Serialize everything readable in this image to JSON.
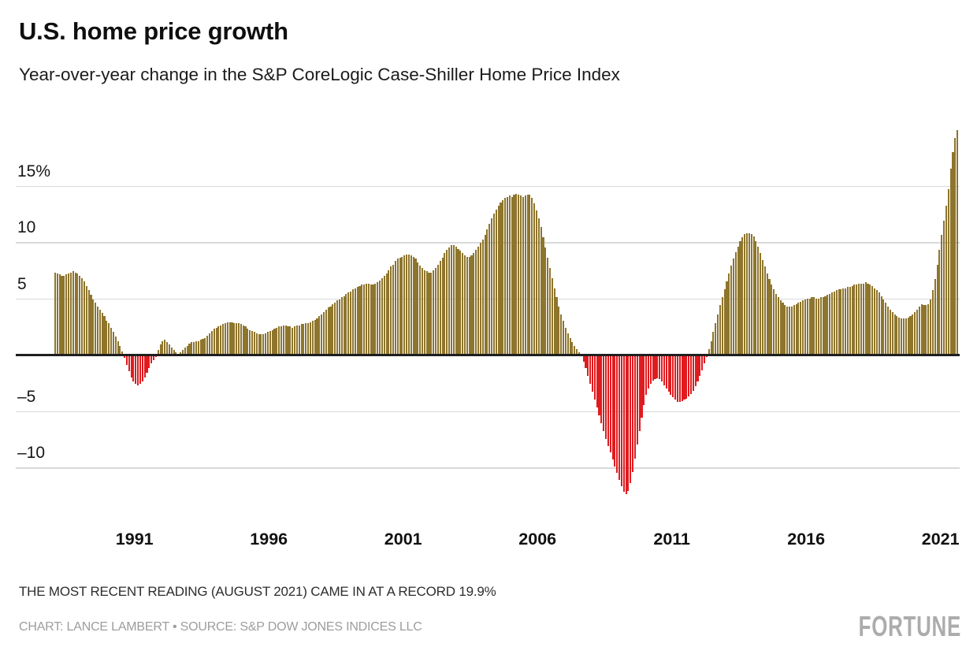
{
  "header": {
    "title": "U.S. home price growth",
    "subtitle": "Year-over-year change in the S&P CoreLogic Case-Shiller Home Price Index"
  },
  "footer": {
    "note": "THE MOST RECENT READING (AUGUST 2021) CAME IN AT A RECORD 19.9%",
    "credit": "CHART: LANCE LAMBERT • SOURCE: S&P DOW JONES INDICES LLC",
    "logo": "FORTUNE"
  },
  "colors": {
    "positive_bar": "#8E752C",
    "negative_bar": "#E01B1F",
    "gridline": "#D9D9D9",
    "zero_line": "#1F1F1F"
  },
  "chart_data": {
    "type": "bar",
    "title": "U.S. home price growth",
    "subtitle": "Year-over-year change in the S&P CoreLogic Case-Shiller Home Price Index",
    "unit": "percent, year-over-year change",
    "frequency": "monthly",
    "x_start": "1988-01",
    "x_end": "2021-08",
    "grid": "horizontal",
    "legend": "none",
    "ylim": [
      -14,
      21
    ],
    "y_ticks": [
      {
        "label": "15%",
        "value": 15
      },
      {
        "label": "10",
        "value": 10
      },
      {
        "label": "5",
        "value": 5
      },
      {
        "label": "–5",
        "value": -5
      },
      {
        "label": "–10",
        "value": -10
      }
    ],
    "x_ticks": [
      {
        "label": "1991",
        "year": 1991
      },
      {
        "label": "1996",
        "year": 1996
      },
      {
        "label": "2001",
        "year": 2001
      },
      {
        "label": "2006",
        "year": 2006
      },
      {
        "label": "2011",
        "year": 2011
      },
      {
        "label": "2016",
        "year": 2016
      },
      {
        "label": "2021",
        "year": 2021
      }
    ],
    "values": [
      7.3,
      7.2,
      7.1,
      7.0,
      7.0,
      7.1,
      7.2,
      7.3,
      7.4,
      7.3,
      7.2,
      7.0,
      6.8,
      6.5,
      6.1,
      5.7,
      5.3,
      4.9,
      4.6,
      4.3,
      4.0,
      3.7,
      3.4,
      3.0,
      2.8,
      2.4,
      2.0,
      1.6,
      1.2,
      0.8,
      0.3,
      -0.3,
      -0.9,
      -1.5,
      -2.0,
      -2.4,
      -2.6,
      -2.7,
      -2.6,
      -2.4,
      -2.0,
      -1.6,
      -1.2,
      -0.8,
      -0.5,
      -0.2,
      0.4,
      0.9,
      1.2,
      1.3,
      1.1,
      0.9,
      0.6,
      0.4,
      0.2,
      0.1,
      0.2,
      0.4,
      0.6,
      0.8,
      1.0,
      1.1,
      1.1,
      1.2,
      1.2,
      1.3,
      1.4,
      1.5,
      1.7,
      1.9,
      2.1,
      2.3,
      2.4,
      2.5,
      2.6,
      2.7,
      2.8,
      2.9,
      2.9,
      2.9,
      2.8,
      2.8,
      2.8,
      2.7,
      2.6,
      2.5,
      2.3,
      2.2,
      2.1,
      2.0,
      1.9,
      1.8,
      1.8,
      1.8,
      1.9,
      2.0,
      2.1,
      2.2,
      2.3,
      2.4,
      2.5,
      2.5,
      2.6,
      2.6,
      2.5,
      2.5,
      2.4,
      2.5,
      2.6,
      2.6,
      2.7,
      2.7,
      2.8,
      2.8,
      2.9,
      3.0,
      3.1,
      3.2,
      3.4,
      3.6,
      3.8,
      4.0,
      4.2,
      4.3,
      4.5,
      4.6,
      4.8,
      4.9,
      5.1,
      5.2,
      5.4,
      5.5,
      5.6,
      5.8,
      5.9,
      6.0,
      6.1,
      6.2,
      6.2,
      6.3,
      6.3,
      6.2,
      6.2,
      6.3,
      6.4,
      6.6,
      6.8,
      7.0,
      7.2,
      7.5,
      7.8,
      8.0,
      8.3,
      8.5,
      8.6,
      8.7,
      8.8,
      8.9,
      8.9,
      8.8,
      8.7,
      8.5,
      8.2,
      7.9,
      7.7,
      7.5,
      7.4,
      7.3,
      7.3,
      7.5,
      7.7,
      8.0,
      8.3,
      8.6,
      9.0,
      9.3,
      9.5,
      9.7,
      9.7,
      9.6,
      9.4,
      9.2,
      9.0,
      8.8,
      8.7,
      8.7,
      8.8,
      9.0,
      9.3,
      9.6,
      9.9,
      10.2,
      10.6,
      11.1,
      11.6,
      12.1,
      12.5,
      12.9,
      13.2,
      13.5,
      13.7,
      13.9,
      14.0,
      14.1,
      14.0,
      14.2,
      14.3,
      14.2,
      14.1,
      14.0,
      14.1,
      14.2,
      14.2,
      13.9,
      13.4,
      12.8,
      12.1,
      11.3,
      10.4,
      9.5,
      8.6,
      7.7,
      6.8,
      5.9,
      5.1,
      4.3,
      3.6,
      3.0,
      2.4,
      1.9,
      1.5,
      1.1,
      0.8,
      0.5,
      0.2,
      -0.1,
      -0.6,
      -1.2,
      -1.9,
      -2.6,
      -3.3,
      -4.0,
      -4.7,
      -5.4,
      -6.1,
      -6.8,
      -7.5,
      -8.1,
      -8.7,
      -9.3,
      -9.9,
      -10.5,
      -11.1,
      -11.7,
      -12.2,
      -12.4,
      -12.1,
      -11.4,
      -10.4,
      -9.2,
      -8.0,
      -6.8,
      -5.6,
      -4.5,
      -3.6,
      -3.0,
      -2.6,
      -2.3,
      -2.2,
      -2.1,
      -2.2,
      -2.4,
      -2.7,
      -3.0,
      -3.3,
      -3.6,
      -3.8,
      -4.0,
      -4.2,
      -4.2,
      -4.1,
      -4.0,
      -3.9,
      -3.7,
      -3.5,
      -3.2,
      -2.8,
      -2.4,
      -1.9,
      -1.4,
      -0.8,
      -0.2,
      0.5,
      1.2,
      2.0,
      2.8,
      3.6,
      4.4,
      5.1,
      5.8,
      6.5,
      7.2,
      7.9,
      8.5,
      9.1,
      9.6,
      10.1,
      10.4,
      10.7,
      10.8,
      10.8,
      10.7,
      10.5,
      10.1,
      9.6,
      9.0,
      8.4,
      7.8,
      7.2,
      6.7,
      6.2,
      5.8,
      5.4,
      5.1,
      4.8,
      4.6,
      4.4,
      4.3,
      4.3,
      4.3,
      4.4,
      4.5,
      4.6,
      4.7,
      4.8,
      4.9,
      5.0,
      5.0,
      5.1,
      5.1,
      5.0,
      5.0,
      5.1,
      5.1,
      5.2,
      5.3,
      5.4,
      5.5,
      5.6,
      5.7,
      5.8,
      5.8,
      5.9,
      5.9,
      6.0,
      6.0,
      6.1,
      6.2,
      6.2,
      6.3,
      6.3,
      6.3,
      6.4,
      6.3,
      6.2,
      6.1,
      5.9,
      5.7,
      5.5,
      5.2,
      4.9,
      4.6,
      4.3,
      4.0,
      3.8,
      3.6,
      3.4,
      3.3,
      3.2,
      3.2,
      3.2,
      3.3,
      3.4,
      3.6,
      3.8,
      4.0,
      4.3,
      4.5,
      4.4,
      4.4,
      4.5,
      4.9,
      5.7,
      6.7,
      8.0,
      9.3,
      10.6,
      11.9,
      13.2,
      14.7,
      16.5,
      18.0,
      19.2,
      19.9
    ]
  }
}
